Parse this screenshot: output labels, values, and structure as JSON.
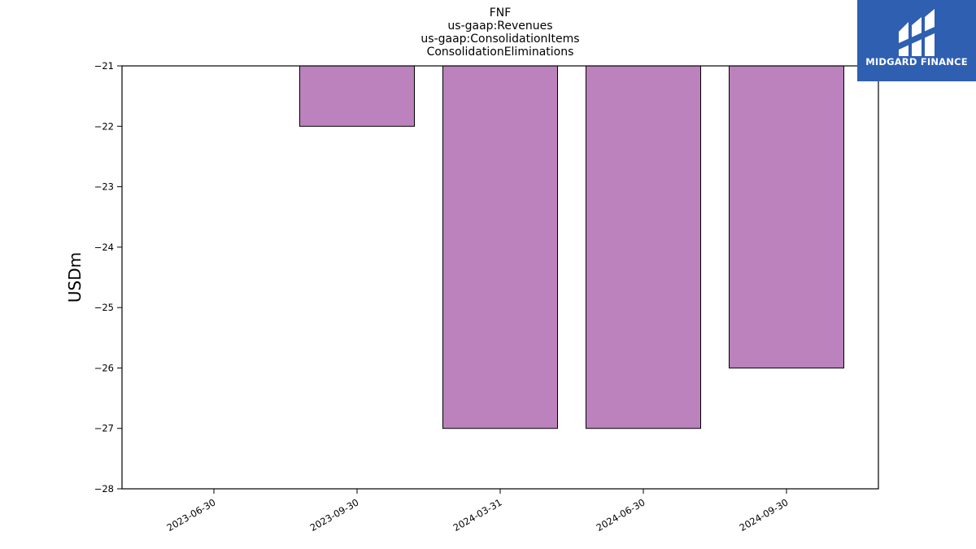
{
  "brand": {
    "name": "MIDGARD FINANCE",
    "color": "#2f5fb0"
  },
  "chart_data": {
    "type": "bar",
    "title_lines": [
      "FNF",
      "us-gaap:Revenues",
      "us-gaap:ConsolidationItems",
      "ConsolidationEliminations"
    ],
    "xlabel": "",
    "ylabel": "USDm",
    "categories": [
      "2023-06-30",
      "2023-09-30",
      "2024-03-31",
      "2024-06-30",
      "2024-09-30"
    ],
    "values": [
      -21,
      -22,
      -27,
      -27,
      -26
    ],
    "ylim": [
      -28,
      -21
    ],
    "yticks": [
      -21,
      -22,
      -23,
      -24,
      -25,
      -26,
      -27,
      -28
    ],
    "bar_color": "#bc82bd",
    "grid": false,
    "legend": "none"
  }
}
